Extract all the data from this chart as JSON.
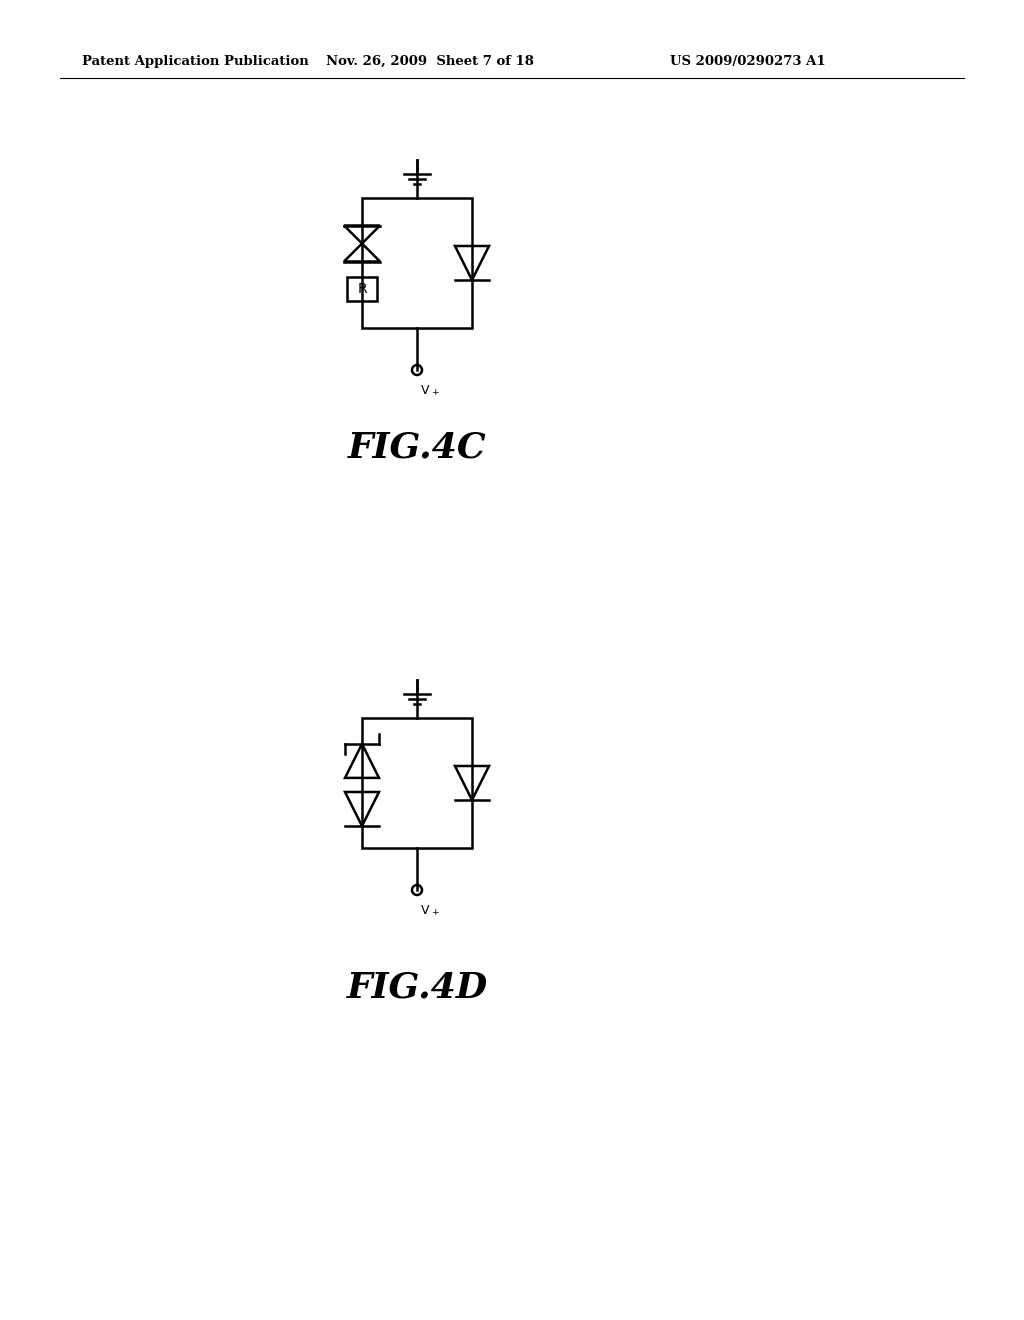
{
  "header_left": "Patent Application Publication",
  "header_mid": "Nov. 26, 2009  Sheet 7 of 18",
  "header_right": "US 2009/0290273 A1",
  "fig_label_4c": "FIG.4C",
  "fig_label_4d": "FIG.4D",
  "bg_color": "#ffffff",
  "line_color": "#000000"
}
